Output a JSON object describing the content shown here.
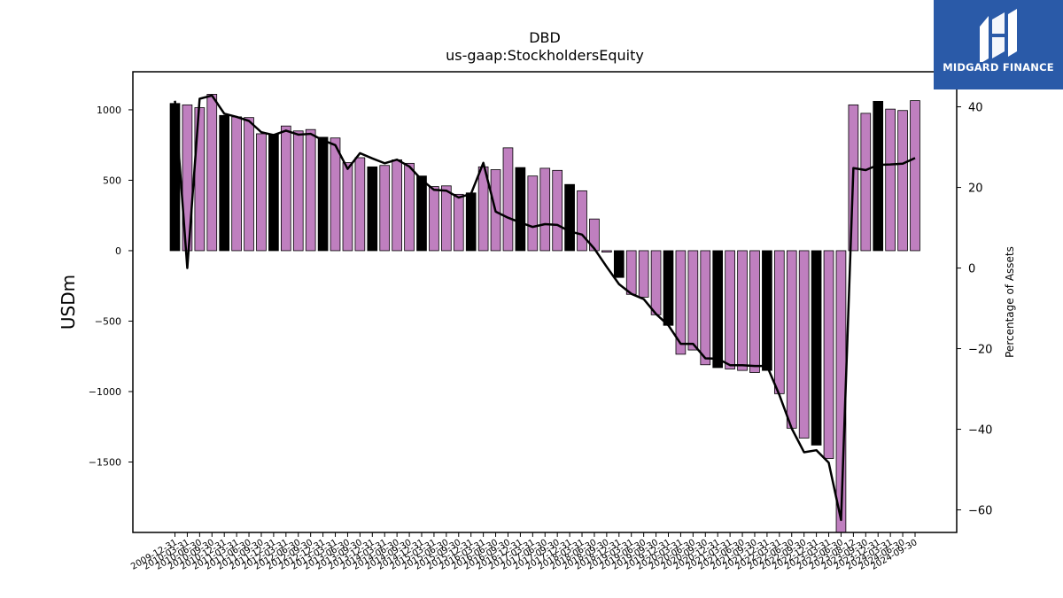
{
  "chart_data": {
    "type": "bar",
    "title": "DBD",
    "subtitle": "us-gaap:StockholdersEquity",
    "ylabel": "USDm",
    "y2label": "Percentage of Assets",
    "ylim": [
      -2000,
      1270
    ],
    "y2lim": [
      -65.6,
      48.7
    ],
    "yticks": [
      -1500,
      -1000,
      -500,
      0,
      500,
      1000
    ],
    "y2ticks": [
      -60,
      -40,
      -20,
      0,
      20,
      40
    ],
    "categories": [
      "2009-12-31",
      "2010-03-31",
      "2010-06-30",
      "2010-09-30",
      "2010-12-31",
      "2011-03-31",
      "2011-06-30",
      "2011-09-30",
      "2011-12-31",
      "2012-03-31",
      "2012-06-30",
      "2012-09-30",
      "2012-12-31",
      "2013-03-31",
      "2013-06-30",
      "2013-09-30",
      "2013-12-31",
      "2014-03-31",
      "2014-06-30",
      "2014-09-30",
      "2014-12-31",
      "2015-03-31",
      "2015-06-30",
      "2015-09-30",
      "2015-12-31",
      "2016-03-31",
      "2016-06-30",
      "2016-09-30",
      "2016-12-31",
      "2017-03-31",
      "2017-06-30",
      "2017-09-30",
      "2017-12-31",
      "2018-03-31",
      "2018-06-30",
      "2018-09-30",
      "2018-12-31",
      "2019-03-31",
      "2019-06-30",
      "2019-09-30",
      "2019-12-31",
      "2020-03-31",
      "2020-06-30",
      "2020-09-30",
      "2020-12-31",
      "2021-03-31",
      "2021-06-30",
      "2021-09-30",
      "2021-12-31",
      "2022-03-31",
      "2022-06-30",
      "2022-09-30",
      "2022-12-31",
      "2023-03-31",
      "2023-06-30",
      "2023-08-12",
      "2023-09-30",
      "2023-12-31",
      "2024-03-31",
      "2024-06-30",
      "2024-09-30"
    ],
    "xtick_labels": [
      "2009-12-31",
      "2010-03-31",
      "2010-06-30",
      "2010-09-30",
      "2010-12-31",
      "2011-03-31",
      "2011-06-30",
      "2011-09-30",
      "2011-12-31",
      "2012-03-31",
      "2012-06-30",
      "2012-09-30",
      "2012-12-31",
      "2013-03-31",
      "2013-06-30",
      "2013-09-30",
      "2013-12-31",
      "2014-03-31",
      "2014-06-30",
      "2014-09-30",
      "2014-12-31",
      "2015-03-31",
      "2015-06-30",
      "2015-09-30",
      "2015-12-31",
      "2016-03-31",
      "2016-06-30",
      "2016-09-30",
      "2016-12-31",
      "2017-03-31",
      "2017-06-30",
      "2017-09-30",
      "2017-12-31",
      "2018-03-31",
      "2018-06-30",
      "2018-09-30",
      "2018-12-31",
      "2019-03-31",
      "2019-06-30",
      "2019-09-30",
      "2019-12-31",
      "2020-03-31",
      "2020-06-30",
      "2020-09-30",
      "2020-12-31",
      "2021-03-31",
      "2021-06-30",
      "2021-09-30",
      "2021-12-31",
      "2022-03-31",
      "2022-06-30",
      "2022-09-30",
      "2022-12-31",
      "2023-03-31",
      "2023-06-30",
      "2023-08-12",
      "2023-09-30",
      "2023-12-31",
      "2024-03-31",
      "2024-06-30",
      "2024-09-30"
    ],
    "series": [
      {
        "kind": "bar",
        "axis": "left",
        "values": [
          1045,
          1035,
          1015,
          1110,
          960,
          950,
          945,
          830,
          825,
          885,
          850,
          860,
          805,
          800,
          625,
          660,
          595,
          605,
          645,
          620,
          530,
          455,
          460,
          400,
          410,
          595,
          575,
          730,
          590,
          530,
          585,
          570,
          470,
          425,
          225,
          -10,
          -190,
          -310,
          -330,
          -455,
          -530,
          -735,
          -705,
          -810,
          -830,
          -840,
          -850,
          -865,
          -850,
          -1015,
          -1260,
          -1330,
          -1380,
          -1475,
          -2000,
          1035,
          975,
          1060,
          1005,
          995,
          1065
        ],
        "colors": [
          "#000000",
          "#bf7fbf",
          "#bf7fbf",
          "#bf7fbf",
          "#000000",
          "#bf7fbf",
          "#bf7fbf",
          "#bf7fbf",
          "#000000",
          "#bf7fbf",
          "#bf7fbf",
          "#bf7fbf",
          "#000000",
          "#bf7fbf",
          "#bf7fbf",
          "#bf7fbf",
          "#000000",
          "#bf7fbf",
          "#bf7fbf",
          "#bf7fbf",
          "#000000",
          "#bf7fbf",
          "#bf7fbf",
          "#bf7fbf",
          "#000000",
          "#bf7fbf",
          "#bf7fbf",
          "#bf7fbf",
          "#000000",
          "#bf7fbf",
          "#bf7fbf",
          "#bf7fbf",
          "#000000",
          "#bf7fbf",
          "#bf7fbf",
          "#bf7fbf",
          "#000000",
          "#bf7fbf",
          "#bf7fbf",
          "#bf7fbf",
          "#000000",
          "#bf7fbf",
          "#bf7fbf",
          "#bf7fbf",
          "#000000",
          "#bf7fbf",
          "#bf7fbf",
          "#bf7fbf",
          "#000000",
          "#bf7fbf",
          "#bf7fbf",
          "#bf7fbf",
          "#000000",
          "#bf7fbf",
          "#bf7fbf",
          "#bf7fbf",
          "#bf7fbf",
          "#000000",
          "#bf7fbf",
          "#bf7fbf",
          "#bf7fbf"
        ]
      },
      {
        "kind": "line",
        "axis": "right",
        "color": "#000000",
        "values": [
          41.5,
          0,
          42,
          42.8,
          38.3,
          37.5,
          36.5,
          33.7,
          33,
          34.1,
          33.1,
          33.3,
          31.7,
          30.5,
          24.6,
          28.5,
          27.2,
          26,
          26.9,
          25.2,
          21.9,
          19.4,
          19.2,
          17.5,
          18.4,
          26.1,
          14,
          12.5,
          11.3,
          10.2,
          10.9,
          10.7,
          9.1,
          8.3,
          4.8,
          0.3,
          -4,
          -6.4,
          -7.7,
          -11.4,
          -14.2,
          -18.8,
          -18.8,
          -22.4,
          -22.5,
          -24.1,
          -24.1,
          -24.3,
          -24.3,
          -31.5,
          -39.8,
          -45.7,
          -45.2,
          -48.3,
          -62.5,
          24.8,
          24.3,
          25.6,
          25.7,
          25.9,
          27.3
        ]
      }
    ],
    "grid": false,
    "legend": "none"
  },
  "logo": {
    "text": "MIDGARD FINANCE",
    "background": "#2a5aa8"
  }
}
